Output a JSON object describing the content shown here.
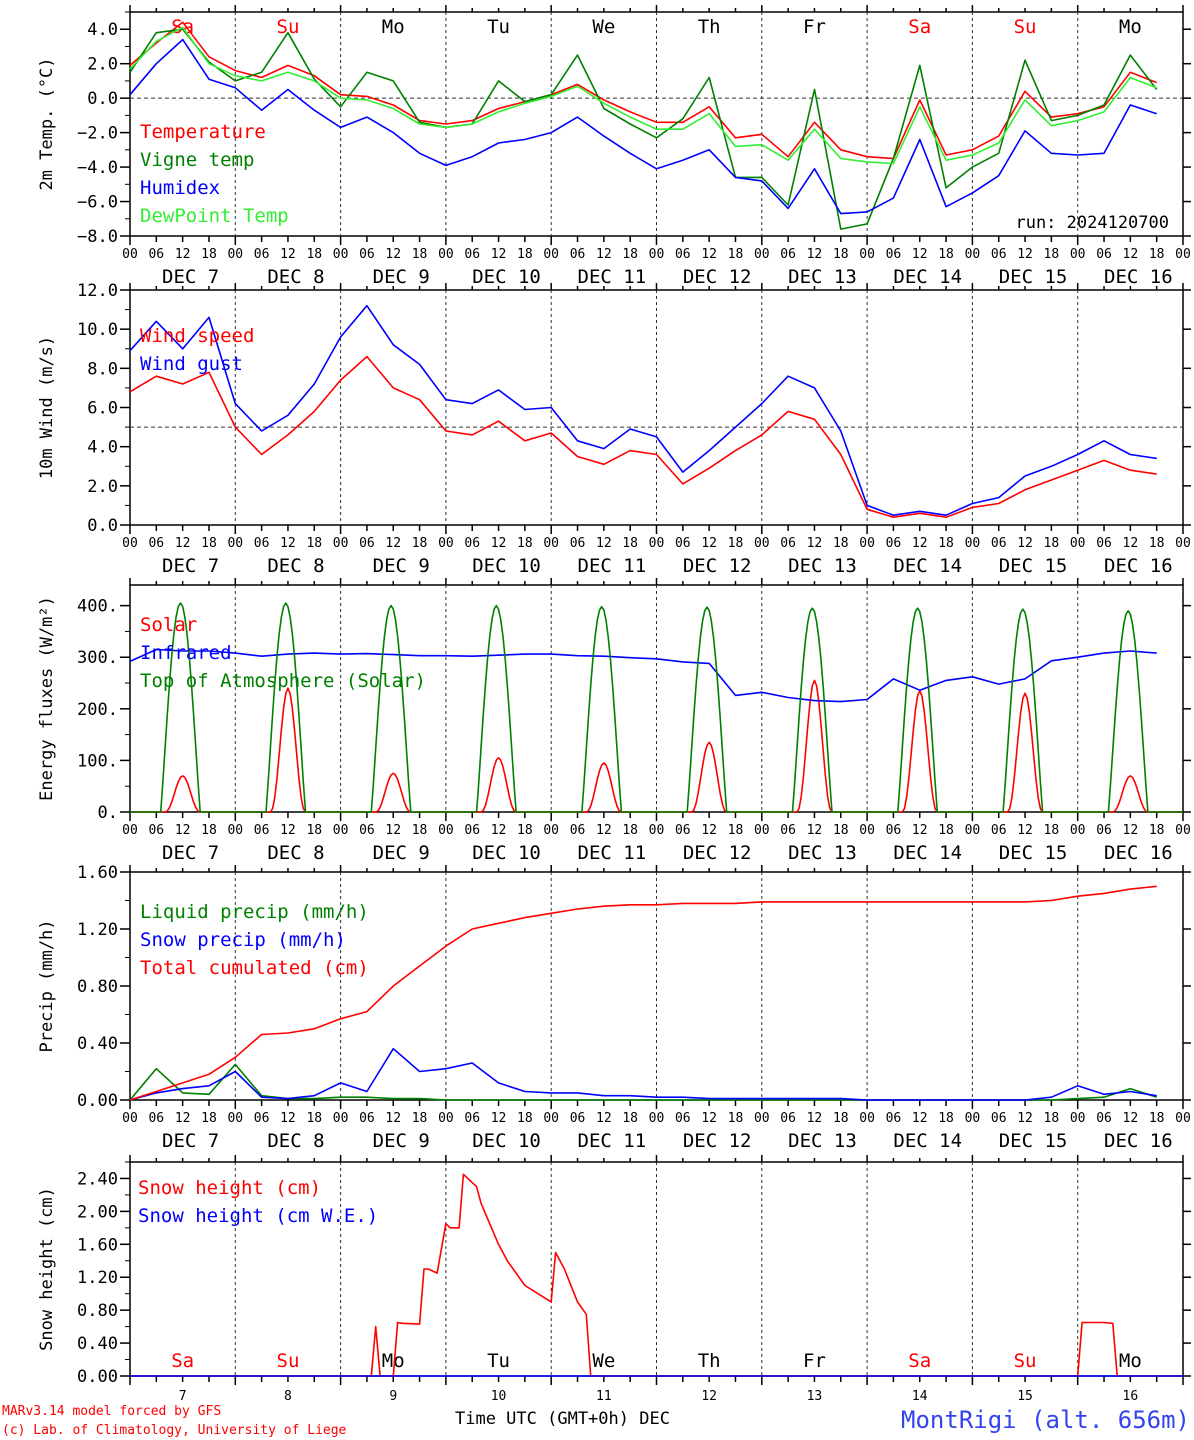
{
  "footer": {
    "credit_line1": "MARv3.14 model forced by GFS",
    "credit_line2": "(c) Lab. of Climatology, University of Liege",
    "xlabel": "Time UTC (GMT+0h) DEC",
    "station": "MontRigi (alt. 656m)"
  },
  "run_label": "run: 2024120700",
  "time_axis": {
    "hour_ticks": [
      "00",
      "06",
      "12",
      "18"
    ],
    "day_labels": [
      "DEC  7",
      "DEC  8",
      "DEC  9",
      "DEC 10",
      "DEC 11",
      "DEC 12",
      "DEC 13",
      "DEC 14",
      "DEC 15",
      "DEC 16"
    ],
    "weekdays": [
      "Sa",
      "Su",
      "Mo",
      "Tu",
      "We",
      "Th",
      "Fr",
      "Sa",
      "Su",
      "Mo"
    ],
    "weekend_flags": [
      true,
      true,
      false,
      false,
      false,
      false,
      false,
      true,
      true,
      false
    ],
    "day_numbers": [
      "7",
      "8",
      "9",
      "10",
      "11",
      "12",
      "13",
      "14",
      "15",
      "16"
    ]
  },
  "colors": {
    "red": "#ff0000",
    "green": "#008000",
    "blue": "#0000ff",
    "lightgreen": "#33ee33",
    "station": "#3344ee"
  },
  "chart_data": [
    {
      "type": "line",
      "ylabel": "2m Temp. (°C)",
      "ylim": [
        -8,
        5
      ],
      "yticks": [
        "4.0",
        "2.0",
        "0.0",
        "−2.0",
        "−4.0",
        "−6.0",
        "−8.0"
      ],
      "ytick_values": [
        4,
        2,
        0,
        -2,
        -4,
        -6,
        -8
      ],
      "reference_line": 0,
      "x": [
        0,
        6,
        12,
        18,
        24,
        30,
        36,
        42,
        48,
        54,
        60,
        66,
        72,
        78,
        84,
        90,
        96,
        102,
        108,
        114,
        120,
        126,
        132,
        138,
        144,
        150,
        156,
        162,
        168,
        174,
        180,
        186,
        192,
        198,
        204,
        210,
        216,
        222,
        228,
        234
      ],
      "series": [
        {
          "name": "Temperature",
          "color": "red",
          "values": [
            1.9,
            3.2,
            4.4,
            2.4,
            1.6,
            1.2,
            1.9,
            1.3,
            0.2,
            0.1,
            -0.4,
            -1.3,
            -1.5,
            -1.3,
            -0.6,
            -0.2,
            0.2,
            0.8,
            -0.1,
            -0.8,
            -1.4,
            -1.4,
            -0.5,
            -2.3,
            -2.1,
            -3.4,
            -1.4,
            -3.0,
            -3.4,
            -3.5,
            -0.1,
            -3.3,
            -3.0,
            -2.2,
            0.4,
            -1.1,
            -0.9,
            -0.5,
            1.5,
            0.9
          ]
        },
        {
          "name": "Vigne temp",
          "color": "green",
          "values": [
            1.5,
            3.8,
            4.0,
            2.1,
            1.0,
            1.5,
            3.8,
            1.1,
            -0.5,
            1.5,
            1.0,
            -1.4,
            -1.7,
            -1.5,
            1.0,
            -0.2,
            0.2,
            2.5,
            -0.6,
            -1.5,
            -2.3,
            -1.2,
            1.2,
            -4.6,
            -4.6,
            -6.2,
            0.5,
            -7.6,
            -7.3,
            -3.5,
            1.9,
            -5.2,
            -4.0,
            -3.2,
            2.2,
            -1.3,
            -1.0,
            -0.4,
            2.5,
            0.5
          ]
        },
        {
          "name": "Humidex",
          "color": "blue",
          "values": [
            0.2,
            2.0,
            3.4,
            1.1,
            0.6,
            -0.7,
            0.5,
            -0.7,
            -1.7,
            -1.1,
            -2.0,
            -3.2,
            -3.9,
            -3.4,
            -2.6,
            -2.4,
            -2.0,
            -1.1,
            -2.2,
            -3.2,
            -4.1,
            -3.6,
            -3.0,
            -4.6,
            -4.8,
            -6.4,
            -4.1,
            -6.7,
            -6.6,
            -5.8,
            -2.4,
            -6.3,
            -5.5,
            -4.5,
            -1.9,
            -3.2,
            -3.3,
            -3.2,
            -0.4,
            -0.9
          ]
        },
        {
          "name": "DewPoint Temp",
          "color": "lightgreen",
          "values": [
            1.7,
            3.3,
            4.1,
            2.0,
            1.3,
            1.0,
            1.5,
            1.0,
            0.0,
            -0.1,
            -0.6,
            -1.5,
            -1.7,
            -1.5,
            -0.8,
            -0.3,
            0.1,
            0.7,
            -0.3,
            -1.1,
            -1.8,
            -1.8,
            -0.9,
            -2.8,
            -2.7,
            -3.6,
            -1.8,
            -3.5,
            -3.7,
            -3.8,
            -0.5,
            -3.6,
            -3.3,
            -2.6,
            -0.1,
            -1.6,
            -1.3,
            -0.8,
            1.2,
            0.6
          ]
        }
      ]
    },
    {
      "type": "line",
      "ylabel": "10m Wind (m/s)",
      "ylim": [
        0,
        12
      ],
      "yticks": [
        "12.0",
        "10.0",
        "8.0",
        "6.0",
        "4.0",
        "2.0",
        "0.0"
      ],
      "ytick_values": [
        12,
        10,
        8,
        6,
        4,
        2,
        0
      ],
      "reference_line": 5,
      "x": [
        0,
        6,
        12,
        18,
        24,
        30,
        36,
        42,
        48,
        54,
        60,
        66,
        72,
        78,
        84,
        90,
        96,
        102,
        108,
        114,
        120,
        126,
        132,
        138,
        144,
        150,
        156,
        162,
        168,
        174,
        180,
        186,
        192,
        198,
        204,
        210,
        216,
        222,
        228,
        234
      ],
      "series": [
        {
          "name": "Wind speed",
          "color": "red",
          "values": [
            6.8,
            7.6,
            7.2,
            7.8,
            5.0,
            3.6,
            4.6,
            5.8,
            7.4,
            8.6,
            7.0,
            6.4,
            4.8,
            4.6,
            5.3,
            4.3,
            4.7,
            3.5,
            3.1,
            3.8,
            3.6,
            2.1,
            2.9,
            3.8,
            4.6,
            5.8,
            5.4,
            3.6,
            0.8,
            0.4,
            0.6,
            0.4,
            0.9,
            1.1,
            1.8,
            2.3,
            2.8,
            3.3,
            2.8,
            2.6
          ]
        },
        {
          "name": "Wind gust",
          "color": "blue",
          "values": [
            8.9,
            10.4,
            9.0,
            10.6,
            6.2,
            4.8,
            5.6,
            7.2,
            9.6,
            11.2,
            9.2,
            8.2,
            6.4,
            6.2,
            6.9,
            5.9,
            6.0,
            4.3,
            3.9,
            4.9,
            4.5,
            2.7,
            3.8,
            5.0,
            6.2,
            7.6,
            7.0,
            4.8,
            1.0,
            0.5,
            0.7,
            0.5,
            1.1,
            1.4,
            2.5,
            3.0,
            3.6,
            4.3,
            3.6,
            3.4
          ]
        }
      ]
    },
    {
      "type": "line",
      "ylabel": "Energy fluxes (W/m²)",
      "ylim": [
        0,
        440
      ],
      "yticks": [
        "400.",
        "300.",
        "200.",
        "100.",
        "0."
      ],
      "ytick_values": [
        400,
        300,
        200,
        100,
        0
      ],
      "series": [
        {
          "name": "Solar",
          "color": "red",
          "daily_peak": [
            70,
            240,
            75,
            105,
            95,
            135,
            255,
            235,
            230,
            70
          ],
          "daily_peak_hour": [
            12,
            11,
            12,
            12,
            12,
            12,
            12,
            12,
            12,
            12
          ]
        },
        {
          "name": "Infrared",
          "color": "blue",
          "x": [
            0,
            6,
            12,
            18,
            24,
            30,
            36,
            42,
            48,
            54,
            60,
            66,
            72,
            78,
            84,
            90,
            96,
            102,
            108,
            114,
            120,
            126,
            132,
            138,
            144,
            150,
            156,
            162,
            168,
            174,
            180,
            186,
            192,
            198,
            204,
            210,
            216,
            222,
            228,
            234
          ],
          "values": [
            292,
            315,
            312,
            312,
            308,
            302,
            306,
            308,
            306,
            307,
            305,
            303,
            303,
            302,
            304,
            306,
            306,
            303,
            302,
            299,
            297,
            291,
            288,
            226,
            232,
            222,
            216,
            214,
            218,
            258,
            236,
            255,
            262,
            248,
            258,
            293,
            300,
            308,
            312,
            308
          ]
        },
        {
          "name": "Top of Atmosphere (Solar)",
          "color": "green",
          "daily_peak": [
            405,
            405,
            400,
            400,
            398,
            397,
            395,
            395,
            393,
            390
          ],
          "sunrise_hour": 7,
          "sunset_hour": 16
        }
      ]
    },
    {
      "type": "line",
      "ylabel": "Precip (mm/h)",
      "ylim": [
        0,
        1.6
      ],
      "yticks": [
        "1.60",
        "1.20",
        "0.80",
        "0.40",
        "0.00"
      ],
      "ytick_values": [
        1.6,
        1.2,
        0.8,
        0.4,
        0
      ],
      "x": [
        0,
        6,
        12,
        18,
        24,
        30,
        36,
        42,
        48,
        54,
        60,
        66,
        72,
        78,
        84,
        90,
        96,
        102,
        108,
        114,
        120,
        126,
        132,
        138,
        144,
        150,
        156,
        162,
        168,
        174,
        180,
        186,
        192,
        198,
        204,
        210,
        216,
        222,
        228,
        234
      ],
      "series": [
        {
          "name": "Liquid precip (mm/h)",
          "color": "green",
          "values": [
            0.0,
            0.22,
            0.05,
            0.04,
            0.25,
            0.03,
            0.01,
            0.01,
            0.02,
            0.02,
            0.01,
            0.01,
            0.0,
            0.0,
            0.0,
            0.0,
            0.0,
            0.0,
            0.0,
            0.0,
            0.0,
            0.0,
            0.0,
            0.0,
            0.0,
            0.0,
            0.0,
            0.0,
            0.0,
            0.0,
            0.0,
            0.0,
            0.0,
            0.0,
            0.0,
            0.0,
            0.01,
            0.02,
            0.08,
            0.02
          ]
        },
        {
          "name": "Snow precip (mm/h)",
          "color": "blue",
          "values": [
            0.0,
            0.05,
            0.08,
            0.1,
            0.2,
            0.02,
            0.01,
            0.03,
            0.12,
            0.06,
            0.36,
            0.2,
            0.22,
            0.26,
            0.12,
            0.06,
            0.05,
            0.05,
            0.03,
            0.03,
            0.02,
            0.02,
            0.01,
            0.01,
            0.01,
            0.01,
            0.01,
            0.01,
            0.0,
            0.0,
            0.0,
            0.0,
            0.0,
            0.0,
            0.0,
            0.02,
            0.1,
            0.04,
            0.06,
            0.03
          ]
        },
        {
          "name": "Total cumulated (cm)",
          "color": "red",
          "values": [
            0.0,
            0.06,
            0.12,
            0.18,
            0.3,
            0.46,
            0.47,
            0.5,
            0.57,
            0.62,
            0.8,
            0.94,
            1.08,
            1.2,
            1.24,
            1.28,
            1.31,
            1.34,
            1.36,
            1.37,
            1.37,
            1.38,
            1.38,
            1.38,
            1.39,
            1.39,
            1.39,
            1.39,
            1.39,
            1.39,
            1.39,
            1.39,
            1.39,
            1.39,
            1.39,
            1.4,
            1.43,
            1.45,
            1.48,
            1.5
          ]
        }
      ]
    },
    {
      "type": "line",
      "ylabel": "Snow height (cm)",
      "ylim": [
        0,
        2.6
      ],
      "yticks": [
        "2.40",
        "2.00",
        "1.60",
        "1.20",
        "0.80",
        "0.40",
        "0.00"
      ],
      "ytick_values": [
        2.4,
        2.0,
        1.6,
        1.2,
        0.8,
        0.4,
        0
      ],
      "series": [
        {
          "name": "Snow height (cm)",
          "color": "red",
          "x": [
            0,
            12,
            24,
            36,
            48,
            55,
            56,
            57,
            58,
            60,
            61,
            62,
            66,
            67,
            68,
            70,
            72,
            73,
            75,
            76,
            79,
            80,
            84,
            86,
            90,
            93,
            96,
            97,
            99,
            102,
            104,
            105,
            216,
            217,
            222,
            224,
            225,
            240
          ],
          "y": [
            0,
            0,
            0,
            0,
            0,
            0,
            0.6,
            0.0,
            0.0,
            0.0,
            0.65,
            0.64,
            0.63,
            1.3,
            1.3,
            1.25,
            1.85,
            1.8,
            1.8,
            2.45,
            2.3,
            2.1,
            1.6,
            1.4,
            1.1,
            1.0,
            0.9,
            1.5,
            1.3,
            0.9,
            0.75,
            0,
            0,
            0.65,
            0.65,
            0.64,
            0,
            0
          ]
        },
        {
          "name": "Snow height (cm W.E.)",
          "color": "blue",
          "x": [
            0,
            240
          ],
          "y": [
            0,
            0
          ]
        }
      ]
    }
  ]
}
